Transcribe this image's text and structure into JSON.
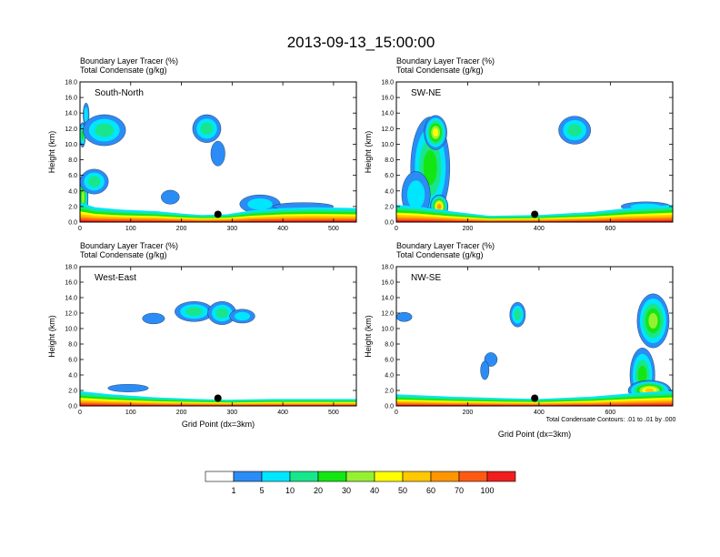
{
  "title": "2013-09-13_15:00:00",
  "colors": {
    "levels": [
      "#ffffff",
      "#2b8cf5",
      "#00e6ff",
      "#19e68c",
      "#14e614",
      "#96f032",
      "#ffff00",
      "#ffc800",
      "#ff9600",
      "#ff5a14",
      "#f01e1e"
    ],
    "marker": "#000000",
    "contour": "#000000"
  },
  "colorbar": {
    "labels": [
      "1",
      "5",
      "10",
      "20",
      "30",
      "40",
      "50",
      "60",
      "70",
      "100"
    ]
  },
  "footnote": "Total Condensate Contours: .01 to .01 by .000",
  "chart_data": [
    {
      "type": "heatmap",
      "panel_label": "South-North",
      "title_line1": "Boundary Layer Tracer    (%)",
      "title_line2": "Total Condensate    (g/kg)",
      "ylabel": "Height (km)",
      "xlabel": "",
      "xlim": [
        0,
        545
      ],
      "ylim": [
        0,
        18
      ],
      "xticks": [
        "0",
        "100",
        "200",
        "300",
        "400",
        "500"
      ],
      "xtick_values": [
        0,
        100,
        200,
        300,
        400,
        500
      ],
      "yticks": [
        "0.0",
        "2.0",
        "4.0",
        "6.0",
        "8.0",
        "10.0",
        "12.0",
        "14.0",
        "16.0",
        "18.0"
      ],
      "marker": {
        "x": 272,
        "y": 1.0
      },
      "boundary_layer": [
        [
          0,
          2.5
        ],
        [
          30,
          1.9
        ],
        [
          80,
          1.6
        ],
        [
          150,
          1.4
        ],
        [
          200,
          1.1
        ],
        [
          240,
          0.9
        ],
        [
          290,
          1.0
        ],
        [
          340,
          1.5
        ],
        [
          400,
          1.8
        ],
        [
          460,
          1.9
        ],
        [
          545,
          1.8
        ]
      ],
      "clouds": [
        {
          "x": 6,
          "y": 3.2,
          "rx": 10,
          "ry": 2.8,
          "level": 5
        },
        {
          "x": 5,
          "y": 11.2,
          "rx": 6,
          "ry": 1.6,
          "level": 4
        },
        {
          "x": 12,
          "y": 13.8,
          "rx": 6,
          "ry": 1.5,
          "level": 2
        },
        {
          "x": 48,
          "y": 11.8,
          "rx": 42,
          "ry": 2.0,
          "level": 3
        },
        {
          "x": 28,
          "y": 5.2,
          "rx": 28,
          "ry": 1.6,
          "level": 3
        },
        {
          "x": 178,
          "y": 3.2,
          "rx": 18,
          "ry": 0.9,
          "level": 1
        },
        {
          "x": 250,
          "y": 12.0,
          "rx": 28,
          "ry": 1.8,
          "level": 3
        },
        {
          "x": 272,
          "y": 8.8,
          "rx": 14,
          "ry": 1.6,
          "level": 1
        },
        {
          "x": 355,
          "y": 2.3,
          "rx": 40,
          "ry": 1.2,
          "level": 2
        },
        {
          "x": 440,
          "y": 2.0,
          "rx": 60,
          "ry": 0.5,
          "level": 1
        }
      ]
    },
    {
      "type": "heatmap",
      "panel_label": "SW-NE",
      "title_line1": "Boundary Layer Tracer    (%)",
      "title_line2": "Total Condensate    (g/kg)",
      "ylabel": "Height (km)",
      "xlabel": "",
      "xlim": [
        0,
        775
      ],
      "ylim": [
        0,
        18
      ],
      "xticks": [
        "0",
        "200",
        "400",
        "600"
      ],
      "xtick_values": [
        0,
        200,
        400,
        600
      ],
      "yticks": [
        "0.0",
        "2.0",
        "4.0",
        "6.0",
        "8.0",
        "10.0",
        "12.0",
        "14.0",
        "16.0",
        "18.0"
      ],
      "marker": {
        "x": 388,
        "y": 1.0
      },
      "boundary_layer": [
        [
          0,
          2.2
        ],
        [
          60,
          2.0
        ],
        [
          150,
          1.4
        ],
        [
          260,
          0.8
        ],
        [
          400,
          0.9
        ],
        [
          550,
          1.3
        ],
        [
          650,
          1.8
        ],
        [
          775,
          2.2
        ]
      ],
      "clouds": [
        {
          "x": 95,
          "y": 7.0,
          "rx": 55,
          "ry": 6.5,
          "level": 4
        },
        {
          "x": 110,
          "y": 11.5,
          "rx": 32,
          "ry": 2.2,
          "level": 6
        },
        {
          "x": 55,
          "y": 3.5,
          "rx": 40,
          "ry": 3.0,
          "level": 2
        },
        {
          "x": 120,
          "y": 2.0,
          "rx": 25,
          "ry": 1.5,
          "level": 8
        },
        {
          "x": 500,
          "y": 11.8,
          "rx": 45,
          "ry": 1.8,
          "level": 3
        },
        {
          "x": 700,
          "y": 2.0,
          "rx": 70,
          "ry": 0.6,
          "level": 2
        }
      ]
    },
    {
      "type": "heatmap",
      "panel_label": "West-East",
      "title_line1": "Boundary Layer Tracer    (%)",
      "title_line2": "Total Condensate    (g/kg)",
      "ylabel": "Height (km)",
      "xlabel": "Grid Point (dx=3km)",
      "xlim": [
        0,
        545
      ],
      "ylim": [
        0,
        18
      ],
      "xticks": [
        "0",
        "100",
        "200",
        "300",
        "400",
        "500"
      ],
      "xtick_values": [
        0,
        100,
        200,
        300,
        400,
        500
      ],
      "yticks": [
        "0.0",
        "2.0",
        "4.0",
        "6.0",
        "8.0",
        "10.0",
        "12.0",
        "14.0",
        "16.0",
        "18.0"
      ],
      "marker": {
        "x": 272,
        "y": 1.0
      },
      "boundary_layer": [
        [
          0,
          1.9
        ],
        [
          60,
          1.5
        ],
        [
          150,
          1.1
        ],
        [
          230,
          0.9
        ],
        [
          290,
          0.8
        ],
        [
          380,
          0.9
        ],
        [
          460,
          0.9
        ],
        [
          545,
          0.9
        ]
      ],
      "clouds": [
        {
          "x": 145,
          "y": 11.3,
          "rx": 22,
          "ry": 0.7,
          "level": 1
        },
        {
          "x": 225,
          "y": 12.2,
          "rx": 38,
          "ry": 1.3,
          "level": 3
        },
        {
          "x": 280,
          "y": 12.0,
          "rx": 28,
          "ry": 1.5,
          "level": 3
        },
        {
          "x": 320,
          "y": 11.6,
          "rx": 25,
          "ry": 0.9,
          "level": 2
        },
        {
          "x": 95,
          "y": 2.3,
          "rx": 40,
          "ry": 0.5,
          "level": 1
        }
      ]
    },
    {
      "type": "heatmap",
      "panel_label": "NW-SE",
      "title_line1": "Boundary Layer Tracer    (%)",
      "title_line2": "Total Condensate    (g/kg)",
      "ylabel": "Height (km)",
      "xlabel": "Grid Point (dx=3km)",
      "xlim": [
        0,
        775
      ],
      "ylim": [
        0,
        18
      ],
      "xticks": [
        "0",
        "200",
        "400",
        "600"
      ],
      "xtick_values": [
        0,
        200,
        400,
        600
      ],
      "yticks": [
        "0.0",
        "2.0",
        "4.0",
        "6.0",
        "8.0",
        "10.0",
        "12.0",
        "14.0",
        "16.0",
        "18.0"
      ],
      "marker": {
        "x": 388,
        "y": 1.0
      },
      "boundary_layer": [
        [
          0,
          1.5
        ],
        [
          150,
          1.2
        ],
        [
          300,
          1.0
        ],
        [
          400,
          0.9
        ],
        [
          550,
          1.2
        ],
        [
          650,
          1.6
        ],
        [
          775,
          2.0
        ]
      ],
      "clouds": [
        {
          "x": 22,
          "y": 11.5,
          "rx": 22,
          "ry": 0.6,
          "level": 1
        },
        {
          "x": 340,
          "y": 11.8,
          "rx": 22,
          "ry": 1.6,
          "level": 3
        },
        {
          "x": 265,
          "y": 6.0,
          "rx": 18,
          "ry": 0.9,
          "level": 1
        },
        {
          "x": 248,
          "y": 4.6,
          "rx": 12,
          "ry": 1.2,
          "level": 1
        },
        {
          "x": 720,
          "y": 11.0,
          "rx": 45,
          "ry": 3.5,
          "level": 5
        },
        {
          "x": 690,
          "y": 4.0,
          "rx": 35,
          "ry": 3.5,
          "level": 4
        },
        {
          "x": 710,
          "y": 2.0,
          "rx": 60,
          "ry": 1.3,
          "level": 7
        }
      ]
    }
  ]
}
